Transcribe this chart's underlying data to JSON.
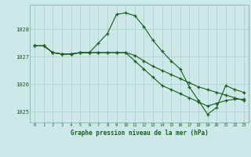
{
  "title": "Graphe pression niveau de la mer (hPa)",
  "bg_color": "#cce8e8",
  "grid_color": "#aacccc",
  "line_color": "#1a5c1a",
  "ylim": [
    1024.6,
    1028.9
  ],
  "yticks": [
    1025,
    1026,
    1027,
    1028
  ],
  "xticks": [
    0,
    1,
    2,
    3,
    4,
    5,
    6,
    7,
    8,
    9,
    10,
    11,
    12,
    13,
    14,
    15,
    16,
    17,
    18,
    19,
    20,
    21,
    22,
    23
  ],
  "series1": [
    1027.4,
    1027.4,
    1027.15,
    1027.1,
    1027.1,
    1027.15,
    1027.15,
    1027.5,
    1027.85,
    1028.55,
    1028.6,
    1028.5,
    1028.1,
    1027.6,
    1027.2,
    1026.85,
    1026.55,
    1025.9,
    1025.4,
    1024.9,
    1025.15,
    1025.95,
    1025.8,
    1025.7
  ],
  "series2": [
    1027.4,
    1027.4,
    1027.15,
    1027.1,
    1027.1,
    1027.15,
    1027.15,
    1027.15,
    1027.15,
    1027.15,
    1027.15,
    1027.05,
    1026.85,
    1026.65,
    1026.5,
    1026.35,
    1026.2,
    1026.05,
    1025.9,
    1025.8,
    1025.7,
    1025.6,
    1025.5,
    1025.4
  ],
  "series3": [
    1027.4,
    1027.4,
    1027.15,
    1027.1,
    1027.1,
    1027.15,
    1027.15,
    1027.15,
    1027.15,
    1027.15,
    1027.15,
    1026.85,
    1026.55,
    1026.25,
    1025.95,
    1025.8,
    1025.65,
    1025.5,
    1025.35,
    1025.2,
    1025.3,
    1025.4,
    1025.45,
    1025.45
  ]
}
